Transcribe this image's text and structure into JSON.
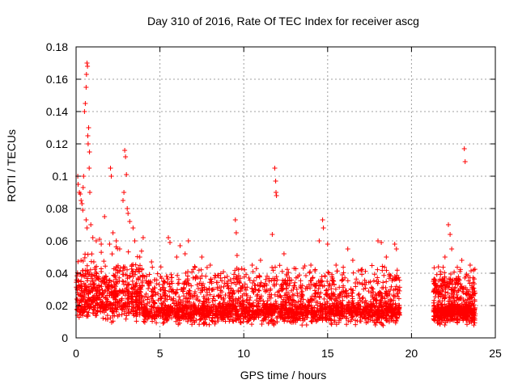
{
  "chart_data": {
    "type": "scatter",
    "title": "Day 310 of 2016, Rate Of TEC Index for receiver ascg",
    "xlabel": "GPS time / hours",
    "ylabel": "ROTI / TECUs",
    "xlim": [
      0,
      25
    ],
    "ylim": [
      0,
      0.18
    ],
    "x_ticks": [
      "0",
      "5",
      "10",
      "15",
      "20",
      "25"
    ],
    "y_ticks": [
      "0",
      "0.02",
      "0.04",
      "0.06",
      "0.08",
      "0.1",
      "0.12",
      "0.14",
      "0.16",
      "0.18"
    ],
    "grid": true,
    "marker": "plus",
    "color": "#ff0000",
    "coverage_hours": [
      [
        0,
        19.3
      ],
      [
        21.3,
        23.8
      ]
    ],
    "outliers": [
      [
        0.1,
        0.1
      ],
      [
        0.12,
        0.095
      ],
      [
        0.2,
        0.09
      ],
      [
        0.25,
        0.089
      ],
      [
        0.3,
        0.085
      ],
      [
        0.35,
        0.083
      ],
      [
        0.4,
        0.079
      ],
      [
        0.42,
        0.093
      ],
      [
        0.45,
        0.1
      ],
      [
        0.5,
        0.14
      ],
      [
        0.55,
        0.145
      ],
      [
        0.6,
        0.155
      ],
      [
        0.62,
        0.163
      ],
      [
        0.65,
        0.17
      ],
      [
        0.68,
        0.168
      ],
      [
        0.7,
        0.125
      ],
      [
        0.72,
        0.12
      ],
      [
        0.75,
        0.13
      ],
      [
        0.78,
        0.105
      ],
      [
        0.8,
        0.115
      ],
      [
        0.82,
        0.09
      ],
      [
        0.88,
        0.07
      ],
      [
        0.6,
        0.073
      ],
      [
        0.65,
        0.068
      ],
      [
        1.0,
        0.062
      ],
      [
        1.2,
        0.06
      ],
      [
        1.4,
        0.061
      ],
      [
        1.5,
        0.058
      ],
      [
        1.7,
        0.075
      ],
      [
        2.0,
        0.058
      ],
      [
        2.05,
        0.105
      ],
      [
        2.1,
        0.1
      ],
      [
        2.2,
        0.065
      ],
      [
        2.4,
        0.06
      ],
      [
        2.6,
        0.055
      ],
      [
        2.8,
        0.085
      ],
      [
        2.85,
        0.09
      ],
      [
        2.9,
        0.116
      ],
      [
        2.95,
        0.112
      ],
      [
        3.0,
        0.101
      ],
      [
        3.05,
        0.08
      ],
      [
        3.1,
        0.077
      ],
      [
        3.2,
        0.072
      ],
      [
        3.4,
        0.068
      ],
      [
        3.5,
        0.06
      ],
      [
        3.8,
        0.05
      ],
      [
        4.0,
        0.062
      ],
      [
        4.5,
        0.047
      ],
      [
        5.5,
        0.062
      ],
      [
        5.6,
        0.059
      ],
      [
        6.0,
        0.05
      ],
      [
        6.2,
        0.057
      ],
      [
        6.5,
        0.052
      ],
      [
        6.7,
        0.06
      ],
      [
        7.5,
        0.05
      ],
      [
        8.0,
        0.045
      ],
      [
        9.5,
        0.073
      ],
      [
        9.55,
        0.065
      ],
      [
        9.6,
        0.051
      ],
      [
        10.5,
        0.045
      ],
      [
        11.0,
        0.048
      ],
      [
        11.7,
        0.064
      ],
      [
        11.85,
        0.105
      ],
      [
        11.9,
        0.097
      ],
      [
        11.92,
        0.09
      ],
      [
        11.95,
        0.088
      ],
      [
        12.4,
        0.052
      ],
      [
        13.0,
        0.043
      ],
      [
        14.0,
        0.045
      ],
      [
        14.5,
        0.06
      ],
      [
        14.7,
        0.073
      ],
      [
        14.75,
        0.068
      ],
      [
        15.0,
        0.058
      ],
      [
        15.5,
        0.045
      ],
      [
        16.2,
        0.055
      ],
      [
        16.5,
        0.048
      ],
      [
        17.0,
        0.042
      ],
      [
        18.0,
        0.06
      ],
      [
        18.2,
        0.059
      ],
      [
        18.5,
        0.05
      ],
      [
        19.0,
        0.058
      ],
      [
        19.1,
        0.055
      ],
      [
        22.0,
        0.05
      ],
      [
        22.2,
        0.07
      ],
      [
        22.3,
        0.064
      ],
      [
        22.4,
        0.055
      ],
      [
        23.0,
        0.048
      ],
      [
        23.15,
        0.117
      ],
      [
        23.2,
        0.109
      ],
      [
        23.5,
        0.045
      ],
      [
        23.7,
        0.042
      ]
    ]
  }
}
